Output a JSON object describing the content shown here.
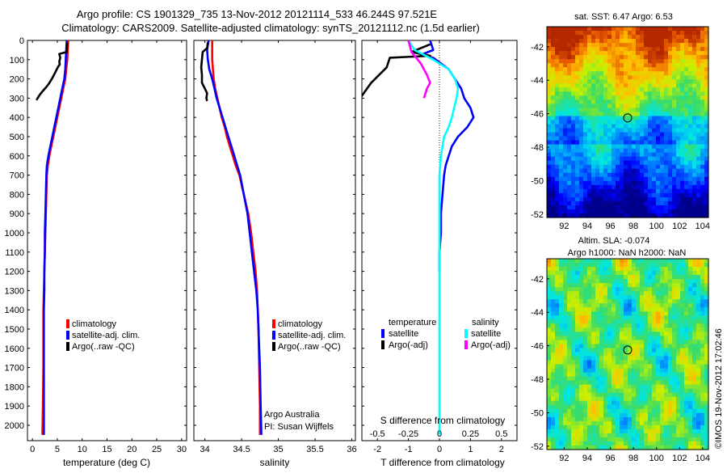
{
  "header": {
    "line1": "Argo profile: CS 1901329_735 13-Nov-2012 20121114_533 46.244S 97.521E",
    "line2": "Climatology: CARS2009. Satellite-adjusted climatology: synTS_20121112.nc (1.5d earlier)"
  },
  "colors": {
    "climatology": "#ff0000",
    "satellite": "#0000ff",
    "argo": "#000000",
    "salinity_satellite": "#00ffff",
    "salinity_argo": "#ff00ff"
  },
  "chart_data": [
    {
      "type": "line",
      "name": "temperature-profile",
      "xlabel": "temperature (deg C)",
      "ylabel": "",
      "xlim": [
        -1,
        31
      ],
      "ylim": [
        2080,
        0
      ],
      "xticks": [
        0,
        5,
        10,
        15,
        20,
        25,
        30
      ],
      "yticks": [
        0,
        100,
        200,
        300,
        400,
        500,
        600,
        700,
        800,
        900,
        1000,
        1100,
        1200,
        1300,
        1400,
        1500,
        1600,
        1700,
        1800,
        1900,
        2000
      ],
      "legend": {
        "placement": "bottom-center",
        "entries": [
          "climatology",
          "satellite-adj. clim.",
          "Argo(..raw -QC)"
        ]
      },
      "series": [
        {
          "name": "climatology",
          "color": "#ff0000",
          "x": [
            7.2,
            7.1,
            7.0,
            6.8,
            6.6,
            6.2,
            5.8,
            5.4,
            5.0,
            4.6,
            4.2,
            3.8,
            3.4,
            3.1,
            2.9,
            2.8,
            2.7,
            2.6,
            2.5,
            2.4,
            2.3,
            2.2,
            2.2,
            2.2,
            2.1,
            2.0
          ],
          "y": [
            0,
            50,
            100,
            150,
            200,
            250,
            300,
            350,
            400,
            450,
            500,
            550,
            600,
            650,
            700,
            800,
            900,
            1000,
            1100,
            1200,
            1300,
            1400,
            1500,
            1700,
            1900,
            2050
          ]
        },
        {
          "name": "satellite-adj. clim.",
          "color": "#0000ff",
          "x": [
            6.9,
            6.8,
            6.7,
            6.6,
            6.4,
            6.0,
            5.6,
            5.2,
            4.8,
            4.4,
            4.0,
            3.6,
            3.2,
            2.9,
            2.8,
            2.7,
            2.6,
            2.5,
            2.5,
            2.4,
            2.4,
            2.3,
            2.3,
            2.3,
            2.3,
            2.3
          ],
          "y": [
            0,
            50,
            100,
            150,
            200,
            250,
            300,
            350,
            400,
            450,
            500,
            550,
            600,
            650,
            700,
            800,
            900,
            1000,
            1100,
            1200,
            1300,
            1400,
            1500,
            1700,
            1900,
            2050
          ]
        },
        {
          "name": "Argo(..raw -QC)",
          "color": "#000000",
          "x": [
            7.0,
            6.9,
            5.4,
            5.6,
            5.4,
            5.5,
            5.2,
            4.9,
            4.5,
            3.9,
            3.3,
            2.7,
            2.0,
            1.4,
            0.8
          ],
          "y": [
            10,
            60,
            70,
            90,
            110,
            125,
            135,
            150,
            170,
            200,
            225,
            245,
            265,
            285,
            310
          ]
        }
      ]
    },
    {
      "type": "line",
      "name": "salinity-profile",
      "xlabel": "salinity",
      "ylabel": "",
      "xlim": [
        33.85,
        36.05
      ],
      "ylim": [
        2080,
        0
      ],
      "xticks": [
        34,
        34.5,
        35,
        35.5,
        36
      ],
      "xticklabels": [
        "34",
        "34.5",
        "35",
        "35.5",
        "36"
      ],
      "legend": {
        "placement": "bottom-center",
        "entries": [
          "climatology",
          "satellite-adj. clim.",
          "Argo(..raw -QC)"
        ]
      },
      "annotations": [
        "Argo Australia",
        "PI: Susan Wijffels"
      ],
      "series": [
        {
          "name": "climatology",
          "color": "#ff0000",
          "x": [
            34.1,
            34.1,
            34.1,
            34.11,
            34.12,
            34.14,
            34.17,
            34.2,
            34.23,
            34.27,
            34.3,
            34.34,
            34.38,
            34.42,
            34.47,
            34.53,
            34.59,
            34.63,
            34.66,
            34.69,
            34.71,
            34.72,
            34.73,
            34.74,
            34.75,
            34.75
          ],
          "y": [
            0,
            50,
            100,
            150,
            200,
            250,
            300,
            350,
            400,
            450,
            500,
            550,
            600,
            650,
            700,
            800,
            900,
            1000,
            1100,
            1200,
            1300,
            1400,
            1500,
            1700,
            1900,
            2050
          ]
        },
        {
          "name": "satellite-adj. clim.",
          "color": "#0000ff",
          "x": [
            34.05,
            34.03,
            34.04,
            34.06,
            34.1,
            34.13,
            34.16,
            34.2,
            34.24,
            34.28,
            34.32,
            34.36,
            34.4,
            34.44,
            34.48,
            34.53,
            34.58,
            34.61,
            34.64,
            34.67,
            34.7,
            34.72,
            34.73,
            34.75,
            34.76,
            34.77
          ],
          "y": [
            0,
            50,
            100,
            150,
            200,
            250,
            300,
            350,
            400,
            450,
            500,
            550,
            600,
            650,
            700,
            800,
            900,
            1000,
            1100,
            1200,
            1300,
            1400,
            1500,
            1700,
            1900,
            2050
          ]
        },
        {
          "name": "Argo(..raw -QC)",
          "color": "#000000",
          "x": [
            34.04,
            34.03,
            33.97,
            33.96,
            33.95,
            33.96,
            33.96,
            34.0,
            34.03,
            34.02,
            34.03
          ],
          "y": [
            10,
            40,
            60,
            100,
            140,
            180,
            220,
            250,
            275,
            300,
            315
          ]
        }
      ]
    },
    {
      "type": "line",
      "name": "difference-profile",
      "xlabel": "T difference from climatology",
      "xlabel_top": "S difference from climatology",
      "ylabel": "",
      "xlim": [
        -2.5,
        2.5
      ],
      "ylim": [
        2080,
        0
      ],
      "xticks": [
        -2,
        -1,
        0,
        1,
        2
      ],
      "s_xticklabels": [
        "-0.5",
        "-0.25",
        "0",
        "0.25",
        "0.5"
      ],
      "legend": {
        "placement": "bottom-center",
        "headers": [
          "temperature",
          "salinity"
        ],
        "entries": [
          "satellite",
          "Argo(-adj)",
          "satellite",
          "Argo(-adj)"
        ]
      },
      "series": [
        {
          "name": "temperature satellite",
          "color": "#0000ff",
          "x": [
            -0.3,
            -0.2,
            -0.6,
            -0.2,
            0.3,
            0.7,
            0.8,
            1.0,
            1.1,
            0.9,
            0.6,
            0.4,
            0.3,
            0.2,
            0.15,
            0.1,
            0.05,
            0.05,
            0.0,
            0.0
          ],
          "y": [
            0,
            50,
            75,
            90,
            150,
            250,
            300,
            350,
            400,
            450,
            500,
            550,
            600,
            650,
            700,
            800,
            900,
            1000,
            1100,
            1200
          ]
        },
        {
          "name": "temperature Argo(-adj)",
          "color": "#000000",
          "x": [
            -0.3,
            -0.9,
            -0.3,
            -1.6,
            -1.7,
            -2.2,
            -2.6
          ],
          "y": [
            20,
            60,
            80,
            90,
            140,
            220,
            310
          ]
        },
        {
          "name": "salinity satellite",
          "color": "#00ffff",
          "x": [
            -1.0,
            -0.8,
            -0.2,
            0.3,
            0.5,
            0.6,
            0.55,
            0.4,
            0.3,
            0.15,
            0.1,
            0.05,
            0.0,
            0.0,
            0.0,
            0.0,
            0.0,
            0.0,
            0.0,
            0.0,
            0.0,
            0.0
          ],
          "y": [
            0,
            50,
            100,
            150,
            200,
            250,
            300,
            400,
            450,
            500,
            550,
            600,
            700,
            800,
            1000,
            1200,
            1400,
            1600,
            1800,
            1900,
            2000,
            2050
          ]
        },
        {
          "name": "salinity Argo(-adj)",
          "color": "#ff00ff",
          "x": [
            -1.0,
            -0.9,
            -0.6,
            -0.4,
            -0.3,
            -0.4,
            -0.5
          ],
          "y": [
            0,
            60,
            120,
            180,
            220,
            250,
            300
          ]
        }
      ]
    },
    {
      "type": "heatmap",
      "name": "sst-map",
      "title": "sat. SST: 6.47  Argo: 6.53",
      "xlim": [
        90.5,
        104.5
      ],
      "ylim": [
        -52.2,
        -40.8
      ],
      "xticks": [
        92,
        94,
        96,
        98,
        100,
        102,
        104
      ],
      "yticks": [
        -42,
        -44,
        -46,
        -48,
        -50,
        -52
      ],
      "marker": {
        "lon": 97.5,
        "lat": -46.25
      }
    },
    {
      "type": "heatmap",
      "name": "sla-map",
      "title": "Altim. SLA: -0.074",
      "subtitle": "Argo h1000: NaN h2000: NaN",
      "xlim": [
        90.5,
        104.5
      ],
      "ylim": [
        -52.2,
        -40.8
      ],
      "xticks": [
        92,
        94,
        96,
        98,
        100,
        102,
        104
      ],
      "yticks": [
        -42,
        -44,
        -46,
        -48,
        -50,
        -52
      ],
      "marker": {
        "lon": 97.5,
        "lat": -46.25
      }
    }
  ],
  "stamp": "©IMOS 19-Nov-2012 17:02:46"
}
